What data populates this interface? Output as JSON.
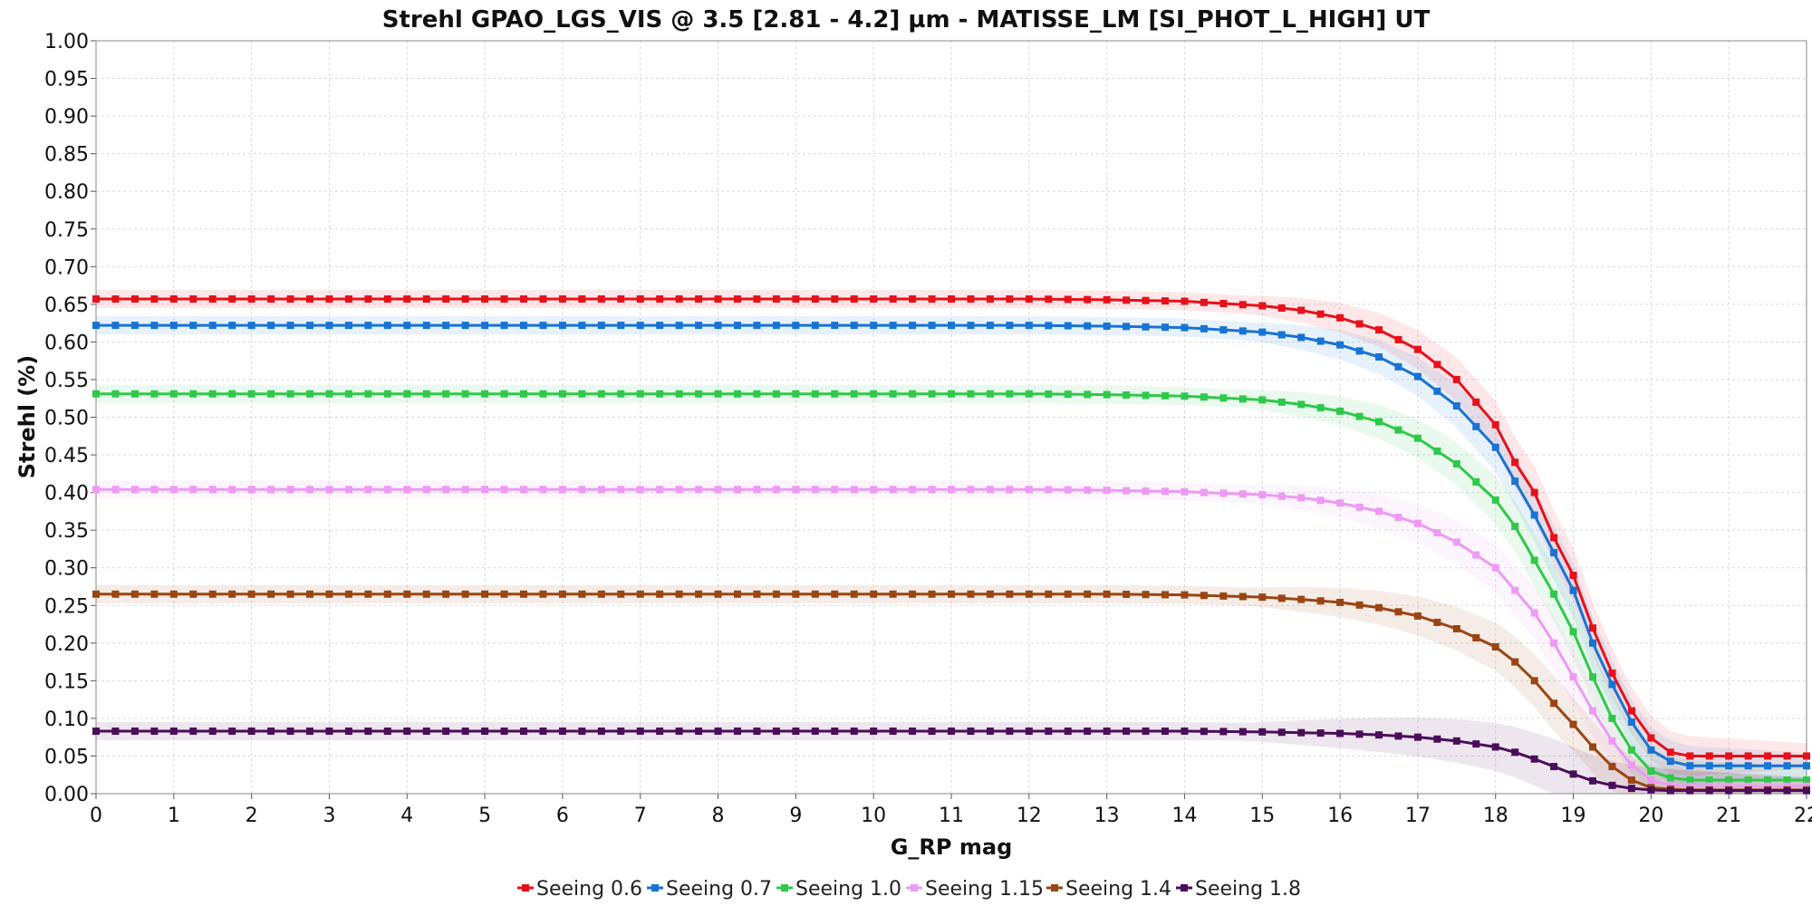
{
  "chart_data": {
    "type": "line",
    "title": "Strehl GPAO_LGS_VIS @ 3.5 [2.81 - 4.2] µm - MATISSE_LM [SI_PHOT_L_HIGH] UT",
    "xlabel": "G_RP mag",
    "ylabel": "Strehl (%)",
    "xlim": [
      0,
      22
    ],
    "ylim": [
      0,
      1
    ],
    "x_ticks": [
      "0",
      "1",
      "2",
      "3",
      "4",
      "5",
      "6",
      "7",
      "8",
      "9",
      "10",
      "11",
      "12",
      "13",
      "14",
      "15",
      "16",
      "17",
      "18",
      "19",
      "20",
      "21",
      "22"
    ],
    "y_ticks": [
      "0.00",
      "0.05",
      "0.10",
      "0.15",
      "0.20",
      "0.25",
      "0.30",
      "0.35",
      "0.40",
      "0.45",
      "0.50",
      "0.55",
      "0.60",
      "0.65",
      "0.70",
      "0.75",
      "0.80",
      "0.85",
      "0.90",
      "0.95",
      "1.00"
    ],
    "grid": true,
    "legend_position": "bottom",
    "x": [
      0,
      1,
      2,
      3,
      4,
      5,
      6,
      7,
      8,
      9,
      10,
      11,
      12,
      13,
      14,
      15,
      15.5,
      16,
      16.5,
      17,
      17.5,
      18,
      18.25,
      18.5,
      18.75,
      19,
      19.25,
      19.5,
      19.75,
      20,
      20.25,
      20.5,
      21,
      22
    ],
    "series": [
      {
        "name": "Seeing 0.6",
        "color": "#e8101a",
        "values": [
          0.657,
          0.657,
          0.657,
          0.657,
          0.657,
          0.657,
          0.657,
          0.657,
          0.657,
          0.657,
          0.657,
          0.657,
          0.657,
          0.656,
          0.654,
          0.648,
          0.642,
          0.632,
          0.616,
          0.59,
          0.55,
          0.49,
          0.44,
          0.4,
          0.34,
          0.29,
          0.22,
          0.16,
          0.11,
          0.074,
          0.055,
          0.05,
          0.05,
          0.05
        ]
      },
      {
        "name": "Seeing 0.7",
        "color": "#1773d4",
        "values": [
          0.622,
          0.622,
          0.622,
          0.622,
          0.622,
          0.622,
          0.622,
          0.622,
          0.622,
          0.622,
          0.622,
          0.622,
          0.622,
          0.621,
          0.619,
          0.613,
          0.606,
          0.596,
          0.58,
          0.554,
          0.515,
          0.46,
          0.415,
          0.37,
          0.32,
          0.27,
          0.2,
          0.145,
          0.095,
          0.058,
          0.043,
          0.037,
          0.037,
          0.037
        ]
      },
      {
        "name": "Seeing 1.0",
        "color": "#2ec94a",
        "values": [
          0.531,
          0.531,
          0.531,
          0.531,
          0.531,
          0.531,
          0.531,
          0.531,
          0.531,
          0.531,
          0.531,
          0.531,
          0.531,
          0.53,
          0.528,
          0.523,
          0.517,
          0.508,
          0.494,
          0.472,
          0.438,
          0.39,
          0.355,
          0.31,
          0.265,
          0.215,
          0.155,
          0.1,
          0.058,
          0.03,
          0.021,
          0.018,
          0.018,
          0.018
        ]
      },
      {
        "name": "Seeing 1.15",
        "color": "#ee99f5",
        "values": [
          0.404,
          0.404,
          0.404,
          0.404,
          0.404,
          0.404,
          0.404,
          0.404,
          0.404,
          0.404,
          0.404,
          0.404,
          0.404,
          0.403,
          0.401,
          0.397,
          0.393,
          0.386,
          0.375,
          0.359,
          0.334,
          0.3,
          0.27,
          0.24,
          0.2,
          0.155,
          0.11,
          0.07,
          0.038,
          0.018,
          0.011,
          0.01,
          0.01,
          0.01
        ]
      },
      {
        "name": "Seeing 1.4",
        "color": "#9a4512",
        "values": [
          0.265,
          0.265,
          0.265,
          0.265,
          0.265,
          0.265,
          0.265,
          0.265,
          0.265,
          0.265,
          0.265,
          0.265,
          0.265,
          0.265,
          0.264,
          0.261,
          0.258,
          0.254,
          0.247,
          0.236,
          0.219,
          0.195,
          0.175,
          0.15,
          0.12,
          0.092,
          0.062,
          0.036,
          0.018,
          0.008,
          0.006,
          0.005,
          0.005,
          0.005
        ]
      },
      {
        "name": "Seeing 1.8",
        "color": "#4a0d5a",
        "values": [
          0.083,
          0.083,
          0.083,
          0.083,
          0.083,
          0.083,
          0.083,
          0.083,
          0.083,
          0.083,
          0.083,
          0.083,
          0.083,
          0.083,
          0.083,
          0.082,
          0.081,
          0.08,
          0.078,
          0.075,
          0.07,
          0.062,
          0.055,
          0.046,
          0.036,
          0.026,
          0.017,
          0.011,
          0.007,
          0.005,
          0.004,
          0.004,
          0.004,
          0.004
        ]
      }
    ]
  }
}
